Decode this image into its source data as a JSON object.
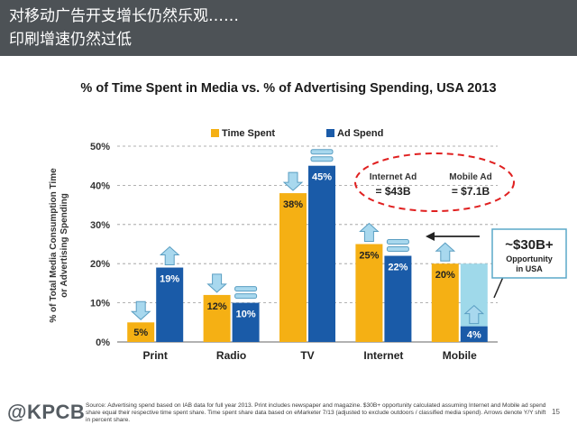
{
  "header": {
    "line1": "对移动广告开支增长仍然乐观……",
    "line2": "印刷增速仍然过低"
  },
  "chart_data": {
    "type": "bar",
    "title": "% of Time Spent in Media vs. % of Advertising Spending, USA 2013",
    "ylabel": "% of Total Media Consumption Time or Advertising Spending",
    "ylabel_line1": "% of Total Media Consumption Time",
    "ylabel_line2": "or Advertising Spending",
    "xlabel": "",
    "ylim": [
      0,
      50
    ],
    "yticks": [
      "0%",
      "10%",
      "20%",
      "30%",
      "40%",
      "50%"
    ],
    "categories": [
      "Print",
      "Radio",
      "TV",
      "Internet",
      "Mobile"
    ],
    "series": [
      {
        "name": "Time Spent",
        "values": [
          5,
          12,
          38,
          25,
          20
        ],
        "labels": [
          "5%",
          "12%",
          "38%",
          "25%",
          "20%"
        ],
        "color": "#f5b014"
      },
      {
        "name": "Ad Spend",
        "values": [
          19,
          10,
          45,
          22,
          4
        ],
        "labels": [
          "19%",
          "10%",
          "45%",
          "22%",
          "4%"
        ],
        "color": "#1a5ba8"
      }
    ],
    "legend": {
      "time": "Time Spent",
      "ad": "Ad Spend",
      "position": "top-left"
    },
    "shift_markers": [
      {
        "category": "Print",
        "series": "Time Spent",
        "type": "down-arrow"
      },
      {
        "category": "Print",
        "series": "Ad Spend",
        "type": "up-arrow"
      },
      {
        "category": "Radio",
        "series": "Time Spent",
        "type": "down-arrow"
      },
      {
        "category": "Radio",
        "series": "Ad Spend",
        "type": "equal"
      },
      {
        "category": "TV",
        "series": "Time Spent",
        "type": "down-arrow"
      },
      {
        "category": "TV",
        "series": "Ad Spend",
        "type": "equal"
      },
      {
        "category": "Internet",
        "series": "Time Spent",
        "type": "up-arrow"
      },
      {
        "category": "Internet",
        "series": "Ad Spend",
        "type": "equal"
      },
      {
        "category": "Mobile",
        "series": "Time Spent",
        "type": "up-arrow"
      },
      {
        "category": "Mobile",
        "series": "Ad Spend",
        "type": "up-arrow"
      }
    ],
    "annotations": {
      "internet_ad_label": "Internet Ad",
      "internet_ad_value": "= $43B",
      "mobile_ad_label": "Mobile Ad",
      "mobile_ad_value": "= $7.1B",
      "opportunity_value": 20,
      "opportunity_big": "~$30B+",
      "opportunity_line1": "Opportunity",
      "opportunity_line2": "in USA"
    },
    "colors": {
      "time": "#f5b014",
      "ad": "#1a5ba8",
      "arrow_fill": "#a8d8ee",
      "arrow_stroke": "#5a9ec2",
      "opportunity": "#9fd9ea",
      "dashed_ellipse": "#e02020"
    }
  },
  "footer": {
    "logo": "@KPCB",
    "source": "Source: Advertising spend based on IAB data for full year 2013. Print includes newspaper and magazine. $30B+ opportunity calculated assuming Internet and Mobile ad spend share equal their respective time spent share. Time spent share data based on eMarketer 7/13 (adjusted to exclude outdoors / classified media spend). Arrows denote Y/Y shift in percent share.",
    "page": "15"
  }
}
